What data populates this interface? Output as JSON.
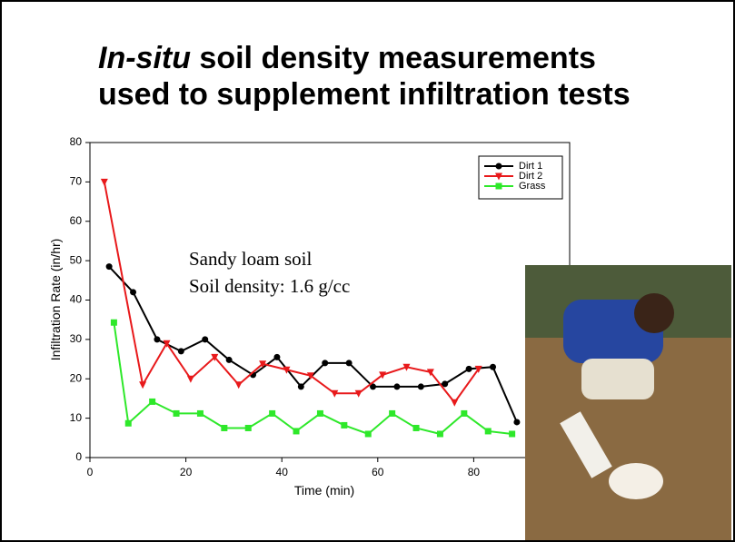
{
  "slide_title": [
    "In-situ",
    " soil density measurements",
    "used to supplement infiltration tests"
  ],
  "chart_data": {
    "type": "line",
    "xlabel": "Time (min)",
    "ylabel": "Infiltration Rate (in/hr)",
    "annotations": [
      "Sandy loam soil",
      "Soil density: 1.6 g/cc"
    ],
    "xlim": [
      0,
      100
    ],
    "xticks": [
      0,
      20,
      40,
      60,
      80
    ],
    "ylim": [
      0,
      80
    ],
    "yticks": [
      0,
      10,
      20,
      30,
      40,
      50,
      60,
      70,
      80
    ],
    "legend": "upper right",
    "series": [
      {
        "name": "Dirt 1",
        "color": "#000000",
        "marker": "circle",
        "x": [
          4,
          9,
          14,
          19,
          24,
          29,
          34,
          39,
          44,
          49,
          54,
          59,
          64,
          69,
          74,
          79,
          84,
          89
        ],
        "values": [
          48.5,
          42,
          30,
          27,
          30,
          24.8,
          21,
          25.5,
          18,
          24,
          24,
          18,
          18,
          18,
          18.7,
          22.5,
          23,
          9
        ]
      },
      {
        "name": "Dirt 2",
        "color": "#e8191b",
        "marker": "triangle-down",
        "x": [
          3,
          11,
          16,
          21,
          26,
          31,
          36,
          41,
          46,
          51,
          56,
          61,
          66,
          71,
          76,
          81
        ],
        "values": [
          70,
          18.5,
          29,
          20,
          25.5,
          18.5,
          23.8,
          22.3,
          20.8,
          16.3,
          16.3,
          21,
          23,
          21.7,
          14,
          22.5
        ]
      },
      {
        "name": "Grass",
        "color": "#2ee82a",
        "marker": "square",
        "x": [
          5,
          8,
          13,
          18,
          23,
          28,
          33,
          38,
          43,
          48,
          53,
          58,
          63,
          68,
          73,
          78,
          83,
          88
        ],
        "values": [
          34.3,
          8.7,
          14.2,
          11.2,
          11.2,
          7.5,
          7.5,
          11.2,
          6.7,
          11.2,
          8.2,
          6,
          11.2,
          7.5,
          6,
          11.2,
          6.7,
          6
        ]
      }
    ]
  }
}
